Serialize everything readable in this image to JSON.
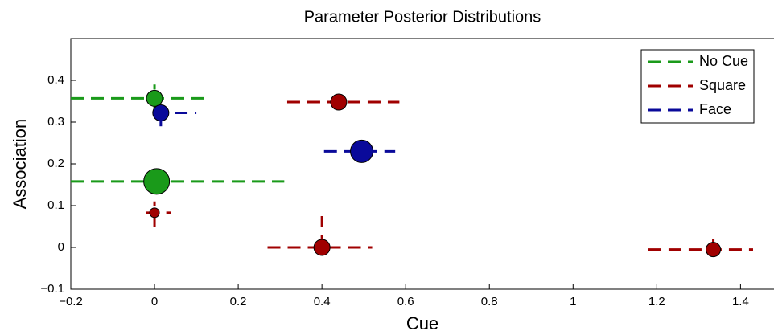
{
  "chart_data": {
    "type": "scatter",
    "title": "Parameter Posterior Distributions",
    "x_label": "Cue",
    "y_label": "Association",
    "xlim": [
      -0.2,
      1.48
    ],
    "ylim": [
      -0.1,
      0.5
    ],
    "xticks": [
      {
        "value": -0.2,
        "label": "−0.2"
      },
      0,
      0.2,
      0.4,
      0.6,
      0.8,
      1,
      1.2,
      1.4
    ],
    "yticks": [
      {
        "value": -0.1,
        "label": "−0.1"
      },
      0,
      0.1,
      0.2,
      0.3,
      0.4
    ],
    "legend": "upper right",
    "series": [
      {
        "name": "No Cue",
        "color": "#1a9a1a",
        "x": [
          0.0,
          0.005
        ],
        "values": [
          0.357,
          0.158
        ],
        "sizes": [
          10,
          16
        ],
        "x_low": [
          -0.2,
          -0.2
        ],
        "x_high": [
          0.12,
          0.31
        ],
        "y_low": [
          0.33,
          null
        ],
        "y_high": [
          0.39,
          null
        ]
      },
      {
        "name": "Square",
        "color": "#a00000",
        "x": [
          0.44,
          0.0,
          0.4,
          1.335
        ],
        "values": [
          0.348,
          0.083,
          0.0,
          -0.005
        ],
        "sizes": [
          10,
          6,
          10,
          9
        ],
        "x_low": [
          0.317,
          -0.02,
          0.27,
          1.18
        ],
        "x_high": [
          0.585,
          0.04,
          0.52,
          1.43
        ],
        "y_low": [
          0.33,
          0.05,
          0.0,
          -0.01
        ],
        "y_high": [
          0.36,
          0.11,
          0.075,
          0.02
        ]
      },
      {
        "name": "Face",
        "color": "#0a0a9a",
        "x": [
          0.015,
          0.495
        ],
        "values": [
          0.322,
          0.23
        ],
        "sizes": [
          10,
          14
        ],
        "x_low": [
          0.0,
          0.405
        ],
        "x_high": [
          0.1,
          0.575
        ],
        "y_low": [
          0.29,
          null
        ],
        "y_high": [
          0.33,
          null
        ]
      }
    ]
  }
}
